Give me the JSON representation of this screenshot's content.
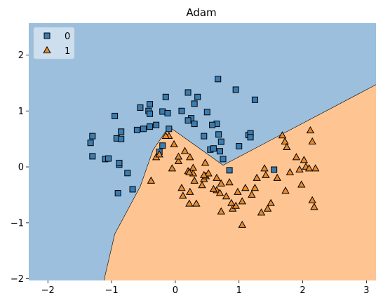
{
  "chart_data": {
    "type": "scatter",
    "title": "Adam",
    "xlabel": "",
    "ylabel": "",
    "xlim": [
      -2.3,
      3.15
    ],
    "ylim": [
      -2.03,
      2.57
    ],
    "xticks": [
      -2,
      -1,
      0,
      1,
      2,
      3
    ],
    "yticks": [
      -2,
      -1,
      0,
      1,
      2
    ],
    "grid": false,
    "legend_position": "top-left",
    "colors": {
      "region_0": "#9bbfdd",
      "region_1": "#fec593",
      "class_0": "#3a7db2",
      "class_1": "#ea8a2d",
      "edge": "#000000"
    },
    "decision_boundary": {
      "x": [
        -1.12,
        -0.95,
        -0.55,
        -0.35,
        -0.1,
        0.75,
        3.15
      ],
      "y": [
        -2.03,
        -1.2,
        -0.35,
        0.3,
        0.72,
        0.03,
        1.47
      ]
    },
    "series": [
      {
        "name": "0",
        "marker": "square",
        "x": [
          -1.33,
          -1.3,
          -1.1,
          -1.05,
          -0.95,
          -0.92,
          -0.85,
          -0.67,
          -0.6,
          -0.5,
          -0.42,
          -0.4,
          -0.3,
          -0.2,
          -0.15,
          -0.12,
          -0.1,
          -1.3,
          -0.9,
          -0.88,
          -0.75,
          -0.55,
          -0.4,
          -0.25,
          -0.88,
          -0.4,
          -0.85,
          -0.2,
          0.1,
          0.2,
          0.25,
          0.3,
          0.35,
          0.45,
          0.5,
          0.55,
          0.6,
          0.65,
          0.7,
          0.72,
          0.75,
          0.95,
          1.25,
          1.15,
          1.18,
          0.67,
          0.85,
          0.2,
          0.3,
          0.58,
          0.68,
          1.0,
          1.18,
          1.55
        ],
        "y": [
          0.43,
          0.19,
          0.14,
          0.15,
          0.91,
          0.51,
          0.63,
          -0.4,
          0.66,
          0.68,
          1.0,
          1.12,
          0.75,
          0.99,
          1.25,
          0.96,
          0.68,
          0.55,
          -0.47,
          0.04,
          -0.11,
          1.06,
          0.72,
          0.27,
          0.07,
          0.95,
          0.5,
          0.38,
          1.0,
          1.33,
          0.87,
          1.13,
          1.25,
          0.55,
          0.98,
          0.31,
          0.33,
          0.77,
          0.28,
          0.45,
          0.14,
          1.38,
          1.2,
          0.57,
          0.6,
          1.57,
          -0.06,
          0.83,
          0.77,
          0.75,
          0.58,
          0.37,
          0.53,
          -0.05
        ]
      },
      {
        "name": "1",
        "marker": "triangle",
        "x": [
          -0.38,
          -0.3,
          -0.25,
          -0.1,
          -0.05,
          -0.02,
          0.05,
          0.1,
          0.15,
          0.2,
          0.22,
          0.23,
          0.28,
          0.33,
          0.42,
          0.45,
          0.48,
          0.52,
          0.65,
          0.7,
          0.72,
          0.8,
          0.85,
          0.9,
          0.98,
          1.05,
          1.1,
          1.2,
          1.28,
          1.35,
          1.4,
          1.45,
          1.5,
          1.6,
          1.68,
          1.72,
          1.75,
          1.8,
          1.9,
          1.98,
          2.02,
          2.05,
          2.1,
          2.12,
          2.15,
          2.18,
          2.2,
          0.23,
          0.47,
          0.65,
          1.73,
          1.95,
          -0.15,
          0.05,
          0.22,
          0.3,
          0.45,
          0.6,
          0.72,
          0.95,
          1.05,
          1.42,
          2.15,
          0.12,
          0.28,
          0.88,
          1.25
        ],
        "y": [
          -0.25,
          0.17,
          0.22,
          0.55,
          -0.03,
          0.4,
          0.1,
          -0.38,
          0.28,
          -0.08,
          -0.66,
          -0.45,
          -0.12,
          -0.66,
          -0.33,
          -0.22,
          -0.17,
          -0.12,
          -0.42,
          -0.47,
          -0.8,
          -0.53,
          -0.28,
          -0.75,
          -0.45,
          -1.04,
          -0.38,
          -0.5,
          -0.2,
          -0.82,
          -0.03,
          -0.75,
          -0.65,
          -0.2,
          0.56,
          0.45,
          0.35,
          -0.1,
          0.17,
          -0.32,
          0.12,
          0.0,
          -0.03,
          0.65,
          0.45,
          -0.72,
          -0.03,
          0.17,
          0.07,
          -0.2,
          -0.43,
          -0.05,
          0.55,
          0.18,
          -0.1,
          -0.25,
          -0.15,
          -0.4,
          -0.3,
          -0.7,
          -0.62,
          -0.15,
          -0.6,
          -0.52,
          -0.02,
          -0.65,
          -0.38
        ]
      }
    ],
    "legend": [
      {
        "label": "0",
        "marker": "square"
      },
      {
        "label": "1",
        "marker": "triangle"
      }
    ]
  }
}
